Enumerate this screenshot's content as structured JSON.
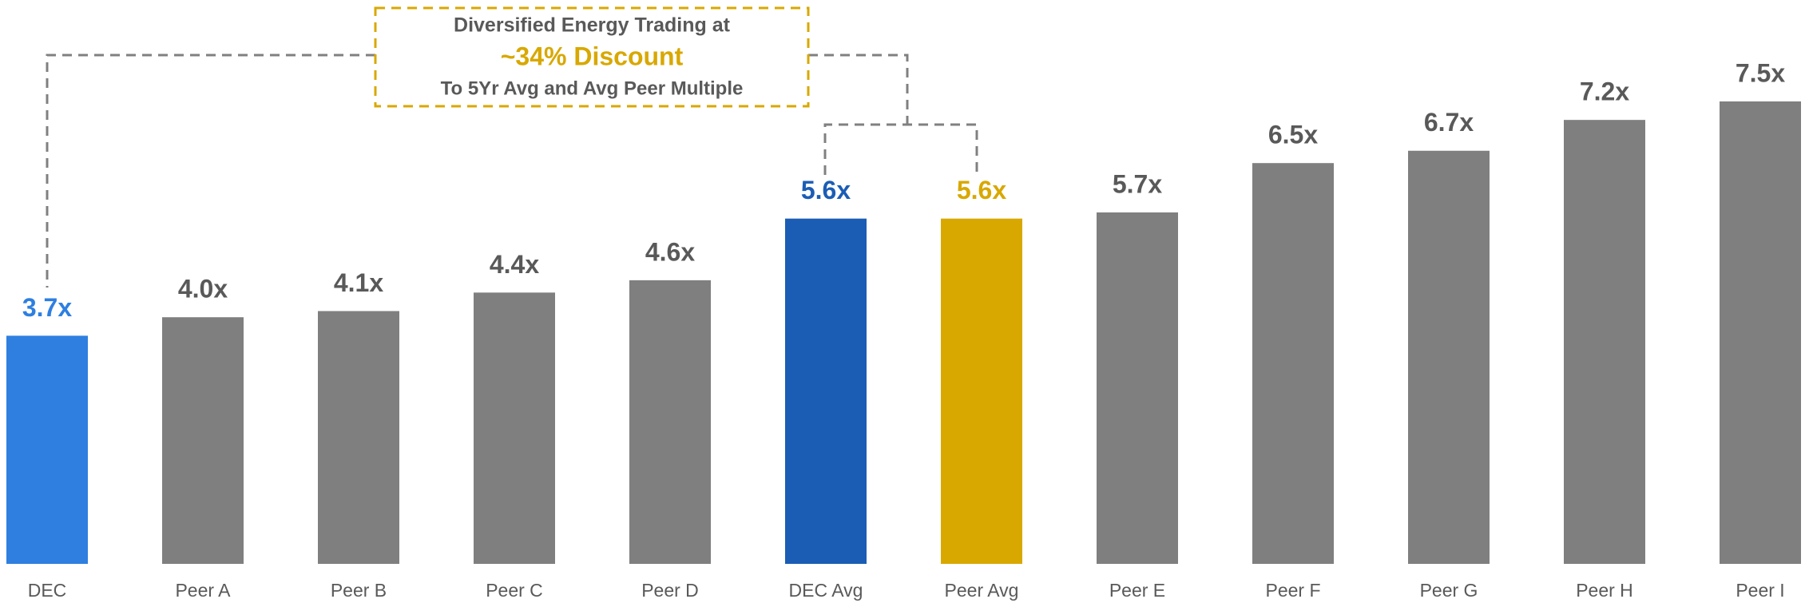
{
  "chart_data": {
    "type": "bar",
    "annotation": {
      "line1": "Diversified Energy Trading at",
      "line2": "~34% Discount",
      "line3": "To 5Yr Avg and Avg Peer Multiple"
    },
    "categories": [
      "DEC",
      "Peer A",
      "Peer B",
      "Peer C",
      "Peer D",
      "DEC Avg",
      "Peer Avg",
      "Peer E",
      "Peer F",
      "Peer G",
      "Peer H",
      "Peer I"
    ],
    "values": [
      3.7,
      4.0,
      4.1,
      4.4,
      4.6,
      5.6,
      5.6,
      5.7,
      6.5,
      6.7,
      7.2,
      7.5
    ],
    "value_labels": [
      "3.7x",
      "4.0x",
      "4.1x",
      "4.4x",
      "4.6x",
      "5.6x",
      "5.6x",
      "5.7x",
      "6.5x",
      "6.7x",
      "7.2x",
      "7.5x"
    ],
    "colors": [
      "#2e7fe0",
      "#7f7f7f",
      "#7f7f7f",
      "#7f7f7f",
      "#7f7f7f",
      "#1b5db5",
      "#d8a800",
      "#7f7f7f",
      "#7f7f7f",
      "#7f7f7f",
      "#7f7f7f",
      "#7f7f7f"
    ],
    "label_colors": [
      "#2e7fe0",
      "#595959",
      "#595959",
      "#595959",
      "#595959",
      "#1b5db5",
      "#d8a800",
      "#595959",
      "#595959",
      "#595959",
      "#595959",
      "#595959"
    ],
    "ylim": [
      0,
      7.5
    ]
  }
}
